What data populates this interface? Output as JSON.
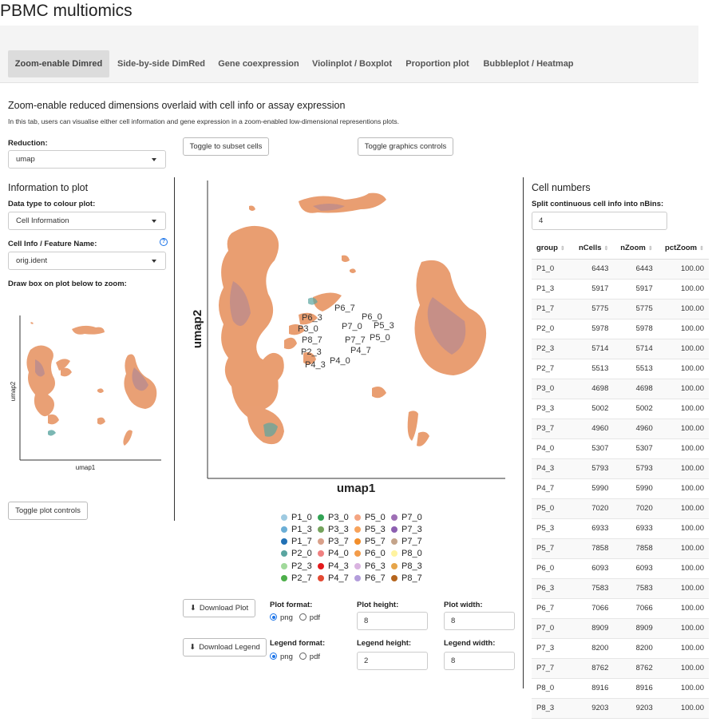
{
  "app": {
    "title": "PBMC multiomics"
  },
  "tabs": [
    {
      "label": "Zoom-enable Dimred",
      "active": true
    },
    {
      "label": "Side-by-side DimRed",
      "active": false
    },
    {
      "label": "Gene coexpression",
      "active": false
    },
    {
      "label": "Violinplot / Boxplot",
      "active": false
    },
    {
      "label": "Proportion plot",
      "active": false
    },
    {
      "label": "Bubbleplot / Heatmap",
      "active": false
    }
  ],
  "section": {
    "title": "Zoom-enable reduced dimensions overlaid with cell info or assay expression",
    "description": "In this tab, users can visualise either cell information and gene expression in a zoom-enabled low-dimensional representions plots."
  },
  "controls": {
    "reduction_label": "Reduction:",
    "reduction_value": "umap",
    "toggle_subset": "Toggle to subset cells",
    "toggle_graphics": "Toggle graphics controls",
    "info_title": "Information to plot",
    "datatype_label": "Data type to colour plot:",
    "datatype_value": "Cell Information",
    "feature_label": "Cell Info / Feature Name:",
    "help_icon": "?",
    "feature_value": "orig.ident",
    "zoom_hint": "Draw box on plot below to zoom:",
    "toggle_plot_controls": "Toggle plot controls"
  },
  "mini_plot": {
    "xlabel": "umap1",
    "ylabel": "umap2"
  },
  "main_plot": {
    "xlabel": "umap1",
    "ylabel": "umap2",
    "cluster_labels": [
      {
        "text": "P6_7"
      },
      {
        "text": "P6_0"
      },
      {
        "text": "P6_3"
      },
      {
        "text": "P3_0"
      },
      {
        "text": "P7_0"
      },
      {
        "text": "P5_3"
      },
      {
        "text": "P8_7"
      },
      {
        "text": "P5_0"
      },
      {
        "text": "P7_7"
      },
      {
        "text": "P2_3"
      },
      {
        "text": "P4_7"
      },
      {
        "text": "P4_0"
      },
      {
        "text": "P4_3"
      }
    ]
  },
  "legend": [
    {
      "label": "P1_0",
      "color": "#9ecae1"
    },
    {
      "label": "P3_0",
      "color": "#31a354"
    },
    {
      "label": "P5_0",
      "color": "#f4a582"
    },
    {
      "label": "P7_0",
      "color": "#9e6fb5"
    },
    {
      "label": "P1_3",
      "color": "#6baed6"
    },
    {
      "label": "P3_3",
      "color": "#74a35c"
    },
    {
      "label": "P5_3",
      "color": "#f7a35c"
    },
    {
      "label": "P7_3",
      "color": "#8c5fb0"
    },
    {
      "label": "P1_7",
      "color": "#2171b5"
    },
    {
      "label": "P3_7",
      "color": "#d9a08a"
    },
    {
      "label": "P5_7",
      "color": "#f28e2b"
    },
    {
      "label": "P7_7",
      "color": "#c4a48a"
    },
    {
      "label": "P2_0",
      "color": "#5aa5a0"
    },
    {
      "label": "P4_0",
      "color": "#f08080"
    },
    {
      "label": "P6_0",
      "color": "#f39c4a"
    },
    {
      "label": "P8_0",
      "color": "#fff3a0"
    },
    {
      "label": "P2_3",
      "color": "#a1d99b"
    },
    {
      "label": "P4_3",
      "color": "#e31a1c"
    },
    {
      "label": "P6_3",
      "color": "#d9b3e0"
    },
    {
      "label": "P8_3",
      "color": "#e6a54a"
    },
    {
      "label": "P2_7",
      "color": "#4daf4a"
    },
    {
      "label": "P4_7",
      "color": "#e34a33"
    },
    {
      "label": "P6_7",
      "color": "#b39ddb"
    },
    {
      "label": "P8_7",
      "color": "#b5651d"
    }
  ],
  "download": {
    "plot_button": "Download Plot",
    "legend_button": "Download Legend",
    "plot_format_label": "Plot format:",
    "legend_format_label": "Legend format:",
    "opt_png": "png",
    "opt_pdf": "pdf",
    "plot_height_label": "Plot height:",
    "plot_height": "8",
    "plot_width_label": "Plot width:",
    "plot_width": "8",
    "legend_height_label": "Legend height:",
    "legend_height": "2",
    "legend_width_label": "Legend width:",
    "legend_width": "8"
  },
  "cell_numbers": {
    "title": "Cell numbers",
    "bins_label": "Split continuous cell info into nBins:",
    "bins_value": "4",
    "columns": [
      "group",
      "nCells",
      "nZoom",
      "pctZoom"
    ],
    "rows": [
      [
        "P1_0",
        "6443",
        "6443",
        "100.00"
      ],
      [
        "P1_3",
        "5917",
        "5917",
        "100.00"
      ],
      [
        "P1_7",
        "5775",
        "5775",
        "100.00"
      ],
      [
        "P2_0",
        "5978",
        "5978",
        "100.00"
      ],
      [
        "P2_3",
        "5714",
        "5714",
        "100.00"
      ],
      [
        "P2_7",
        "5513",
        "5513",
        "100.00"
      ],
      [
        "P3_0",
        "4698",
        "4698",
        "100.00"
      ],
      [
        "P3_3",
        "5002",
        "5002",
        "100.00"
      ],
      [
        "P3_7",
        "4960",
        "4960",
        "100.00"
      ],
      [
        "P4_0",
        "5307",
        "5307",
        "100.00"
      ],
      [
        "P4_3",
        "5793",
        "5793",
        "100.00"
      ],
      [
        "P4_7",
        "5990",
        "5990",
        "100.00"
      ],
      [
        "P5_0",
        "7020",
        "7020",
        "100.00"
      ],
      [
        "P5_3",
        "6933",
        "6933",
        "100.00"
      ],
      [
        "P5_7",
        "7858",
        "7858",
        "100.00"
      ],
      [
        "P6_0",
        "6093",
        "6093",
        "100.00"
      ],
      [
        "P6_3",
        "7583",
        "7583",
        "100.00"
      ],
      [
        "P6_7",
        "7066",
        "7066",
        "100.00"
      ],
      [
        "P7_0",
        "8909",
        "8909",
        "100.00"
      ],
      [
        "P7_3",
        "8200",
        "8200",
        "100.00"
      ],
      [
        "P7_7",
        "8762",
        "8762",
        "100.00"
      ],
      [
        "P8_0",
        "8916",
        "8916",
        "100.00"
      ],
      [
        "P8_3",
        "9203",
        "9203",
        "100.00"
      ]
    ]
  }
}
